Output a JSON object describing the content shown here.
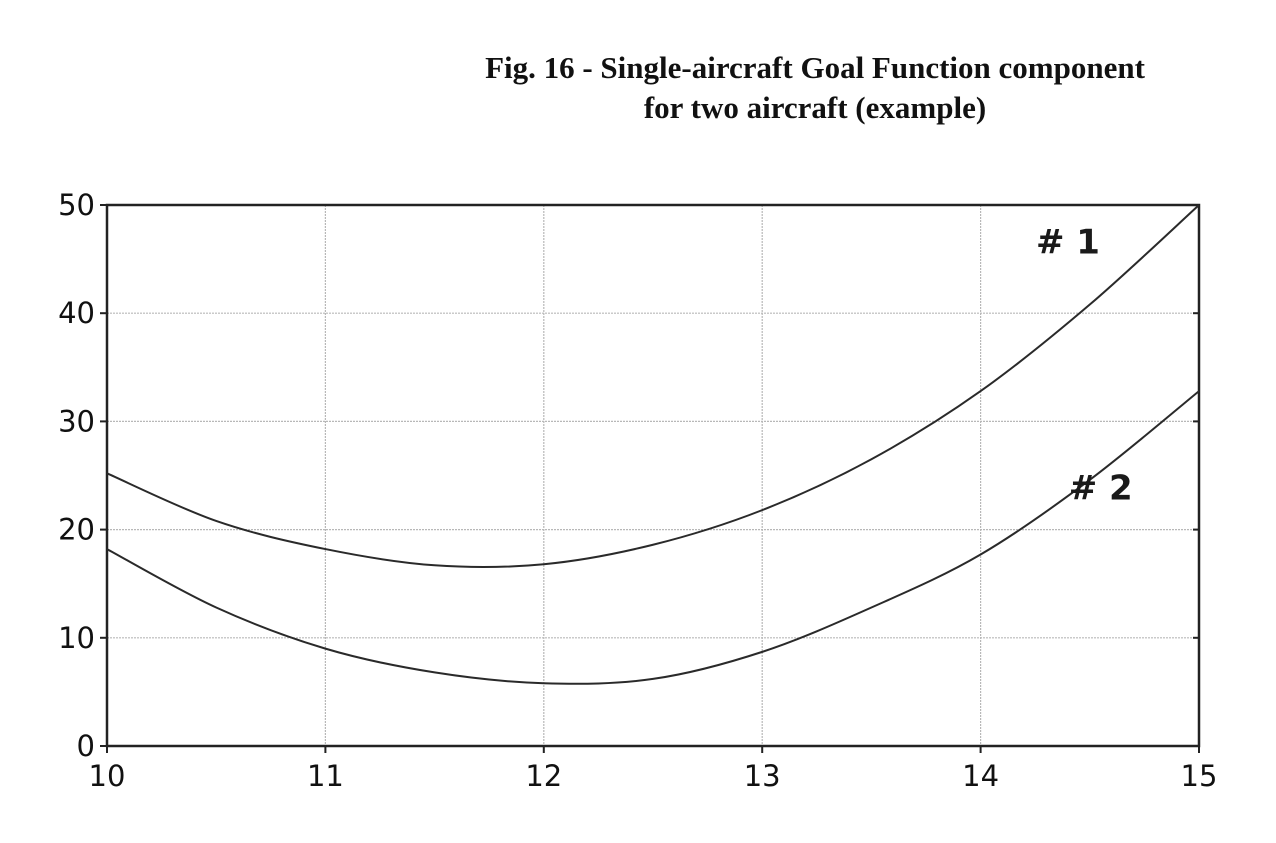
{
  "chart_data": {
    "type": "line",
    "title": "Fig. 16 - Single-aircraft Goal Function component",
    "subtitle": "for two aircraft (example)",
    "xlabel": "",
    "ylabel": "",
    "xlim": [
      10,
      15
    ],
    "ylim": [
      0,
      50
    ],
    "x_ticks": [
      "10",
      "11",
      "12",
      "13",
      "14",
      "15"
    ],
    "y_ticks": [
      "0",
      "10",
      "20",
      "30",
      "40",
      "50"
    ],
    "grid": true,
    "series": [
      {
        "name": "# 1",
        "x": [
          10,
          10.5,
          11,
          11.5,
          12,
          12.5,
          13,
          13.5,
          14,
          14.5,
          15
        ],
        "y": [
          25.2,
          20.8,
          18.2,
          16.7,
          16.8,
          18.6,
          21.8,
          26.5,
          32.8,
          40.8,
          50
        ]
      },
      {
        "name": "# 2",
        "x": [
          10,
          10.5,
          11,
          11.5,
          12,
          12.5,
          13,
          13.5,
          14,
          14.5,
          15
        ],
        "y": [
          18.2,
          12.8,
          9.0,
          6.8,
          5.8,
          6.2,
          8.7,
          12.8,
          17.7,
          24.6,
          32.8
        ]
      }
    ]
  }
}
